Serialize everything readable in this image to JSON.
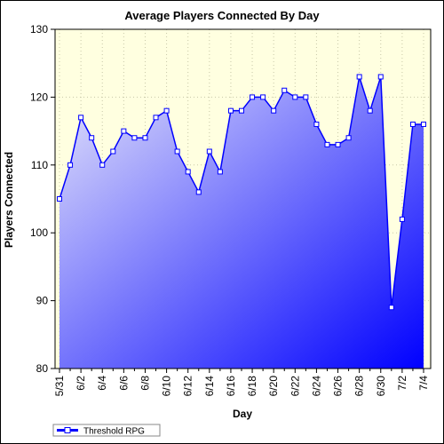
{
  "chart_data": {
    "type": "area",
    "title": "Average Players Connected By Day",
    "xlabel": "Day",
    "ylabel": "Players Connected",
    "ylim": [
      80,
      130
    ],
    "yticks": [
      "80",
      "90",
      "100",
      "110",
      "120",
      "130"
    ],
    "x": [
      "5/31",
      "6/1",
      "6/2",
      "6/3",
      "6/4",
      "6/5",
      "6/6",
      "6/7",
      "6/8",
      "6/9",
      "6/10",
      "6/11",
      "6/12",
      "6/13",
      "6/14",
      "6/15",
      "6/16",
      "6/17",
      "6/18",
      "6/19",
      "6/20",
      "6/21",
      "6/22",
      "6/23",
      "6/24",
      "6/25",
      "6/26",
      "6/27",
      "6/28",
      "6/29",
      "6/30",
      "7/1",
      "7/2",
      "7/3",
      "7/4"
    ],
    "xtick_labels": [
      "5/31",
      "6/2",
      "6/4",
      "6/6",
      "6/8",
      "6/10",
      "6/12",
      "6/14",
      "6/16",
      "6/18",
      "6/20",
      "6/22",
      "6/24",
      "6/26",
      "6/28",
      "6/30",
      "7/2",
      "7/4"
    ],
    "series": [
      {
        "name": "Threshold RPG",
        "values": [
          105,
          110,
          117,
          114,
          110,
          112,
          115,
          114,
          114,
          117,
          118,
          112,
          109,
          106,
          112,
          109,
          118,
          118,
          120,
          120,
          118,
          121,
          120,
          120,
          116,
          113,
          113,
          114,
          123,
          118,
          123,
          89,
          102,
          116,
          116
        ]
      }
    ],
    "grid": true,
    "legend_position": "bottom-left",
    "colors": {
      "plot_background": "#ffffe0",
      "area_top": "#e6e6fa",
      "area_bottom": "#0000ff",
      "line": "#0000ff",
      "marker_fill": "#ffffff"
    }
  }
}
